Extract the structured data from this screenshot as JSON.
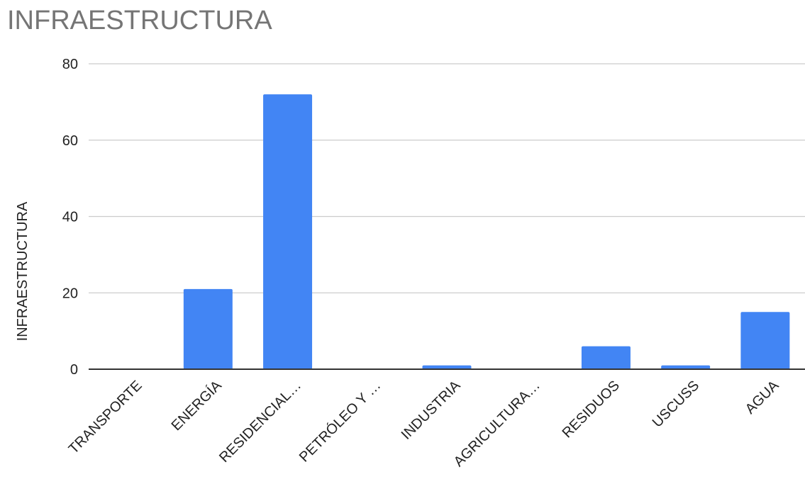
{
  "chart_data": {
    "type": "bar",
    "title": "INFRAESTRUCTURA",
    "xlabel": "",
    "ylabel": "INFRAESTRUCTURA",
    "categories": [
      "TRANSPORTE",
      "ENERGÍA",
      "RESIDENCIAL…",
      "PETRÓLEO Y …",
      "INDUSTRIA",
      "AGRICULTURA…",
      "RESIDUOS",
      "USCUSS",
      "AGUA"
    ],
    "values": [
      0,
      21,
      72,
      0,
      1,
      0,
      6,
      1,
      15
    ],
    "ylim": [
      0,
      80
    ],
    "yticks": [
      0,
      20,
      40,
      60,
      80
    ],
    "grid": true,
    "legend": "none",
    "colors": {
      "bar": "#4285f4",
      "grid": "#cccccc",
      "axis": "#333333",
      "text": "#222222",
      "title": "#757575"
    }
  }
}
